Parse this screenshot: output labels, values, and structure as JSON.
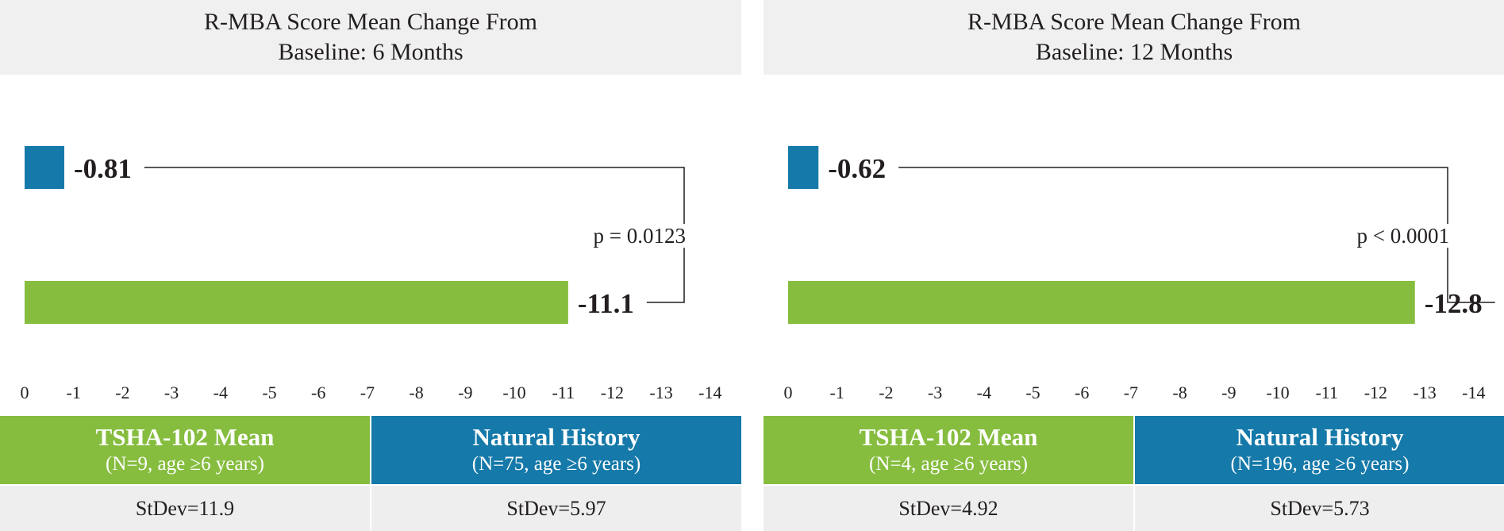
{
  "colors": {
    "green": "#86bd3f",
    "blue": "#1579a9",
    "band": "#f0f0f0"
  },
  "chart_data": [
    {
      "type": "bar",
      "orientation": "horizontal",
      "title": "R-MBA Score Mean Change From Baseline: 6 Months",
      "title_lines": [
        "R-MBA Score Mean Change From",
        "Baseline: 6 Months"
      ],
      "xlim": [
        0,
        -14
      ],
      "ticks": [
        "0",
        "-1",
        "-2",
        "-3",
        "-4",
        "-5",
        "-6",
        "-7",
        "-8",
        "-9",
        "-10",
        "-11",
        "-12",
        "-13",
        "-14"
      ],
      "grid": false,
      "bars": [
        {
          "name": "Natural History",
          "value": -0.81,
          "label": "-0.81",
          "color": "#1579a9"
        },
        {
          "name": "TSHA-102 Mean",
          "value": -11.1,
          "label": "-11.1",
          "color": "#86bd3f"
        }
      ],
      "p_value": "p = 0.0123",
      "legend": [
        {
          "name": "TSHA-102 Mean",
          "detail": "(N=9, age ≥6 years)",
          "stdev": "StDev=11.9",
          "color": "#86bd3f"
        },
        {
          "name": "Natural History",
          "detail": "(N=75, age ≥6 years)",
          "stdev": "StDev=5.97",
          "color": "#1579a9"
        }
      ]
    },
    {
      "type": "bar",
      "orientation": "horizontal",
      "title": "R-MBA Score Mean Change From Baseline: 12 Months",
      "title_lines": [
        "R-MBA Score Mean Change From",
        "Baseline: 12 Months"
      ],
      "xlim": [
        0,
        -14
      ],
      "ticks": [
        "0",
        "-1",
        "-2",
        "-3",
        "-4",
        "-5",
        "-6",
        "-7",
        "-8",
        "-9",
        "-10",
        "-11",
        "-12",
        "-13",
        "-14"
      ],
      "grid": false,
      "bars": [
        {
          "name": "Natural History",
          "value": -0.62,
          "label": "-0.62",
          "color": "#1579a9"
        },
        {
          "name": "TSHA-102 Mean",
          "value": -12.8,
          "label": "-12.8",
          "color": "#86bd3f"
        }
      ],
      "p_value": "p < 0.0001",
      "legend": [
        {
          "name": "TSHA-102 Mean",
          "detail": "(N=4, age ≥6 years)",
          "stdev": "StDev=4.92",
          "color": "#86bd3f"
        },
        {
          "name": "Natural History",
          "detail": "(N=196, age ≥6 years)",
          "stdev": "StDev=5.73",
          "color": "#1579a9"
        }
      ]
    }
  ]
}
